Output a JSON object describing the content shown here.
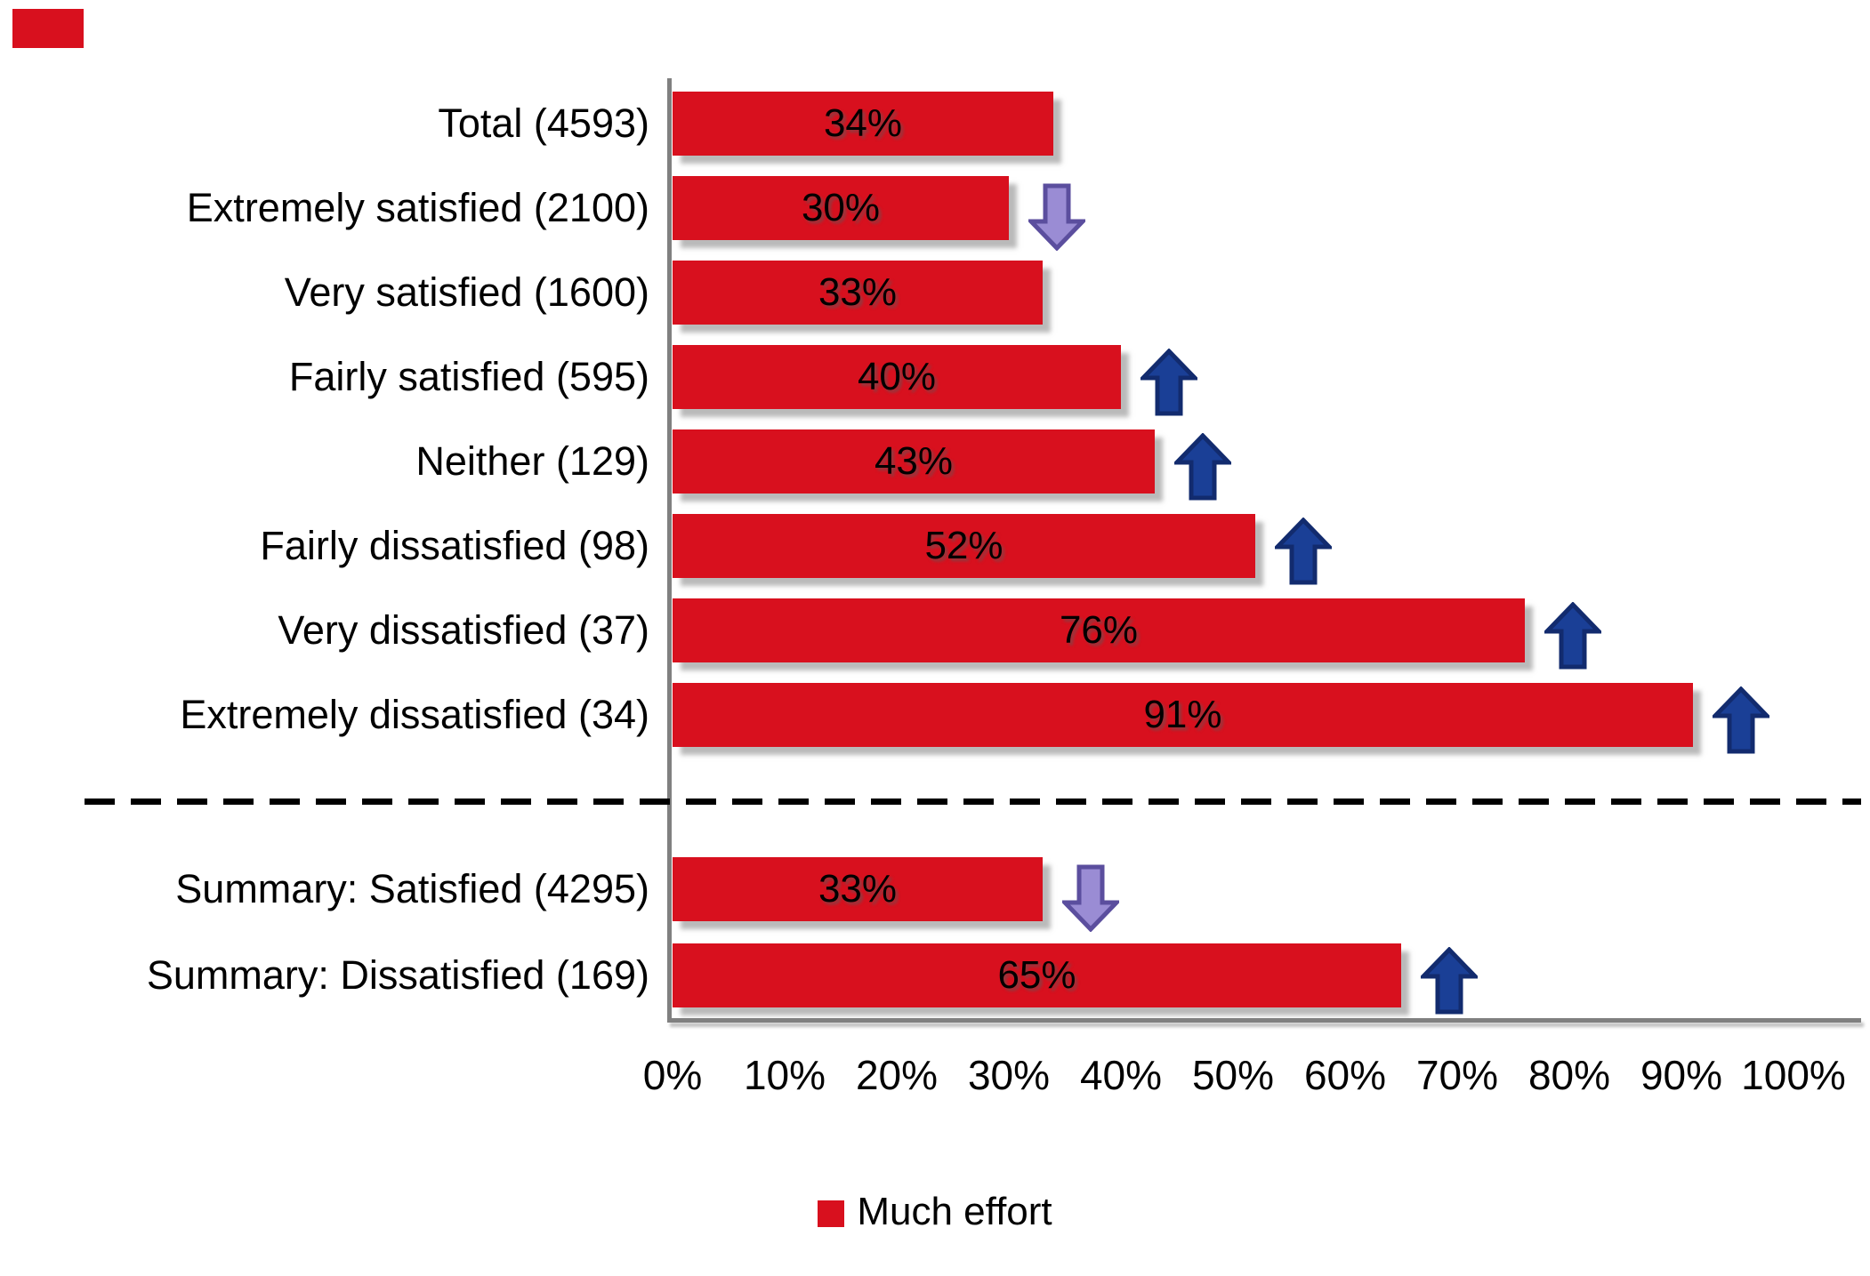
{
  "chart_data": {
    "type": "bar",
    "orientation": "horizontal",
    "title": "",
    "xlabel": "",
    "ylabel": "",
    "x_axis": {
      "min": 0,
      "max": 100,
      "tick_step": 10,
      "unit": "%",
      "tick_labels": [
        "0%",
        "10%",
        "20%",
        "30%",
        "40%",
        "50%",
        "60%",
        "70%",
        "80%",
        "90%",
        "100%"
      ]
    },
    "categories": [
      "Total (4593)",
      "Extremely satisfied (2100)",
      "Very satisfied (1600)",
      "Fairly satisfied (595)",
      "Neither (129)",
      "Fairly dissatisfied (98)",
      "Very dissatisfied (37)",
      "Extremely dissatisfied (34)",
      "Summary: Satisfied (4295)",
      "Summary: Dissatisfied (169)"
    ],
    "values": [
      34,
      30,
      33,
      40,
      43,
      52,
      76,
      91,
      33,
      65
    ],
    "rows": [
      {
        "label": "Total (4593)",
        "count": 4593,
        "value": 34,
        "value_label": "34%",
        "arrow": "none"
      },
      {
        "label": "Extremely satisfied (2100)",
        "count": 2100,
        "value": 30,
        "value_label": "30%",
        "arrow": "down"
      },
      {
        "label": "Very satisfied (1600)",
        "count": 1600,
        "value": 33,
        "value_label": "33%",
        "arrow": "none"
      },
      {
        "label": "Fairly satisfied (595)",
        "count": 595,
        "value": 40,
        "value_label": "40%",
        "arrow": "up"
      },
      {
        "label": "Neither (129)",
        "count": 129,
        "value": 43,
        "value_label": "43%",
        "arrow": "up"
      },
      {
        "label": "Fairly dissatisfied (98)",
        "count": 98,
        "value": 52,
        "value_label": "52%",
        "arrow": "up"
      },
      {
        "label": "Very dissatisfied (37)",
        "count": 37,
        "value": 76,
        "value_label": "76%",
        "arrow": "up"
      },
      {
        "label": "Extremely dissatisfied (34)",
        "count": 34,
        "value": 91,
        "value_label": "91%",
        "arrow": "up"
      },
      {
        "label": "Summary: Satisfied (4295)",
        "count": 4295,
        "value": 33,
        "value_label": "33%",
        "arrow": "down",
        "group": "summary"
      },
      {
        "label": "Summary: Dissatisfied (169)",
        "count": 169,
        "value": 65,
        "value_label": "65%",
        "arrow": "up",
        "group": "summary"
      }
    ],
    "separator_after_row": "Extremely dissatisfied (34)",
    "legend": {
      "position": "bottom-center",
      "items": [
        {
          "label": "Much effort",
          "color": "#D8101E"
        }
      ]
    },
    "colors": {
      "bar": "#D8101E",
      "bar_label_text": "#000000",
      "category_text": "#000000",
      "axis_line": "#808080",
      "separator_line": "#000000",
      "up_arrow_fill": "#1A3F96",
      "up_arrow_stroke": "#122B6E",
      "down_arrow_fill": "#9A8CD4",
      "down_arrow_stroke": "#5B4E9E"
    }
  }
}
